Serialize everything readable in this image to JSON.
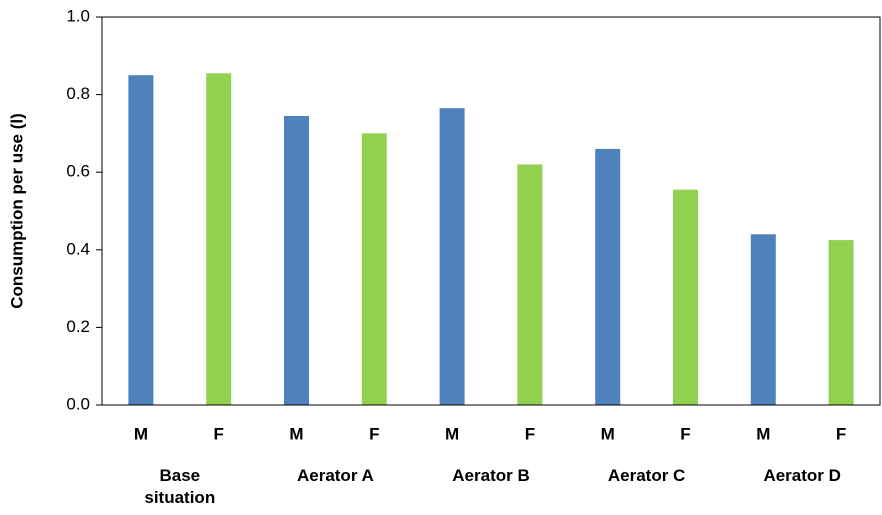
{
  "chart_data": {
    "type": "bar",
    "y_label": "Consumption per use (l)",
    "categories": [
      "M",
      "F",
      "M",
      "F",
      "M",
      "F",
      "M",
      "F",
      "M",
      "F"
    ],
    "groups": [
      "Base situation",
      "Aerator A",
      "Aerator B",
      "Aerator C",
      "Aerator D"
    ],
    "values": [
      0.85,
      0.855,
      0.745,
      0.7,
      0.765,
      0.62,
      0.66,
      0.555,
      0.44,
      0.425
    ],
    "colors": [
      "#4f81bd",
      "#92d050",
      "#4f81bd",
      "#92d050",
      "#4f81bd",
      "#92d050",
      "#4f81bd",
      "#92d050",
      "#4f81bd",
      "#92d050"
    ],
    "ylim": [
      0,
      1.0
    ],
    "yticks": [
      {
        "value": 0,
        "label": "0.0"
      },
      {
        "value": 0.2,
        "label": "0.2"
      },
      {
        "value": 0.4,
        "label": "0.4"
      },
      {
        "value": 0.6,
        "label": "0.6"
      },
      {
        "value": 0.8,
        "label": "0.8"
      },
      {
        "value": 1.0,
        "label": "1.0"
      }
    ],
    "grid": false
  }
}
